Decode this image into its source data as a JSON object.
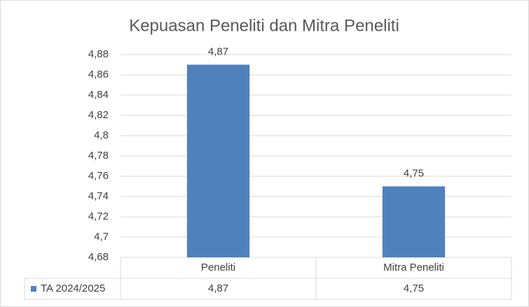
{
  "chart_data": {
    "type": "bar",
    "title": "Kepuasan Peneliti dan Mitra Peneliti",
    "categories": [
      "Peneliti",
      "Mitra Peneliti"
    ],
    "series": [
      {
        "name": "TA 2024/2025",
        "color": "#4f81bd",
        "values": [
          4.87,
          4.75
        ],
        "value_labels": [
          "4,87",
          "4,75"
        ]
      }
    ],
    "ylim": [
      4.68,
      4.88
    ],
    "yticks": [
      {
        "value": 4.68,
        "label": "4,68"
      },
      {
        "value": 4.7,
        "label": "4,7"
      },
      {
        "value": 4.72,
        "label": "4,72"
      },
      {
        "value": 4.74,
        "label": "4,74"
      },
      {
        "value": 4.76,
        "label": "4,76"
      },
      {
        "value": 4.78,
        "label": "4,78"
      },
      {
        "value": 4.8,
        "label": "4,8"
      },
      {
        "value": 4.82,
        "label": "4,82"
      },
      {
        "value": 4.84,
        "label": "4,84"
      },
      {
        "value": 4.86,
        "label": "4,86"
      },
      {
        "value": 4.88,
        "label": "4,88"
      }
    ],
    "grid": true,
    "data_table": true
  }
}
